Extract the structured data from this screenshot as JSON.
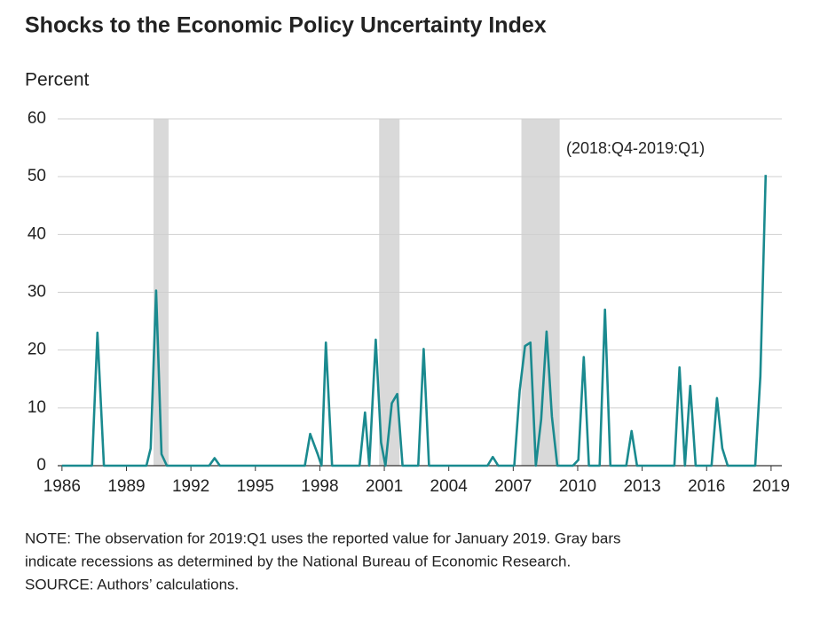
{
  "chart_data": {
    "type": "line",
    "title": "Shocks to the Economic Policy Uncertainty Index",
    "y_label": "Percent",
    "annotation": "(2018:Q4-2019:Q1)",
    "note": [
      "NOTE: The observation for 2019:Q1 uses the reported value for January 2019. Gray bars",
      "indicate recessions as determined by the National Bureau of Economic Research.",
      "SOURCE: Authors’ calculations."
    ],
    "xlim": [
      1985.8,
      2019.5
    ],
    "xticks": [
      1986,
      1989,
      1992,
      1995,
      1998,
      2001,
      2004,
      2007,
      2010,
      2013,
      2016,
      2019
    ],
    "ylim": [
      0,
      60
    ],
    "yticks": [
      0,
      10,
      20,
      30,
      40,
      50,
      60
    ],
    "grid": true,
    "recession_color": "#d9d9d9",
    "recessions": [
      [
        1990.26,
        1990.96
      ],
      [
        2000.76,
        2001.71
      ],
      [
        2007.38,
        2009.16
      ]
    ],
    "series": [
      {
        "color": "#1a8a8f",
        "x": [
          1986.0,
          1987.4,
          1987.65,
          1987.95,
          1989.93,
          1990.13,
          1990.38,
          1990.63,
          1990.88,
          1992.85,
          1993.1,
          1993.35,
          1997.3,
          1997.55,
          1997.9,
          1998.08,
          1998.28,
          1998.57,
          1999.85,
          2000.1,
          2000.3,
          2000.6,
          2000.85,
          2001.05,
          2001.35,
          2001.6,
          2001.85,
          2002.58,
          2002.83,
          2003.08,
          2005.8,
          2006.05,
          2006.3,
          2007.05,
          2007.3,
          2007.55,
          2007.8,
          2008.05,
          2008.3,
          2008.55,
          2008.8,
          2009.05,
          2009.78,
          2010.03,
          2010.28,
          2010.52,
          2011.02,
          2011.27,
          2011.52,
          2012.26,
          2012.51,
          2012.76,
          2014.5,
          2014.74,
          2014.99,
          2015.24,
          2015.49,
          2016.23,
          2016.48,
          2016.73,
          2016.98,
          2018.26,
          2018.5,
          2018.75
        ],
        "values": [
          0,
          0,
          23,
          0,
          0,
          3,
          30.3,
          2,
          0,
          0,
          1.3,
          0,
          0,
          5.5,
          2,
          0,
          21.3,
          0,
          0,
          9.2,
          0,
          21.8,
          4,
          0,
          10.8,
          12.4,
          0,
          0,
          20.2,
          0,
          0,
          1.5,
          0,
          0,
          13,
          20.7,
          21.3,
          0,
          8,
          23.2,
          8.5,
          0,
          0,
          1,
          18.8,
          0,
          0,
          27,
          0,
          0,
          6,
          0,
          0,
          17,
          0,
          13.8,
          0,
          0,
          11.7,
          3,
          0,
          0,
          15.5,
          50.3
        ]
      }
    ]
  }
}
